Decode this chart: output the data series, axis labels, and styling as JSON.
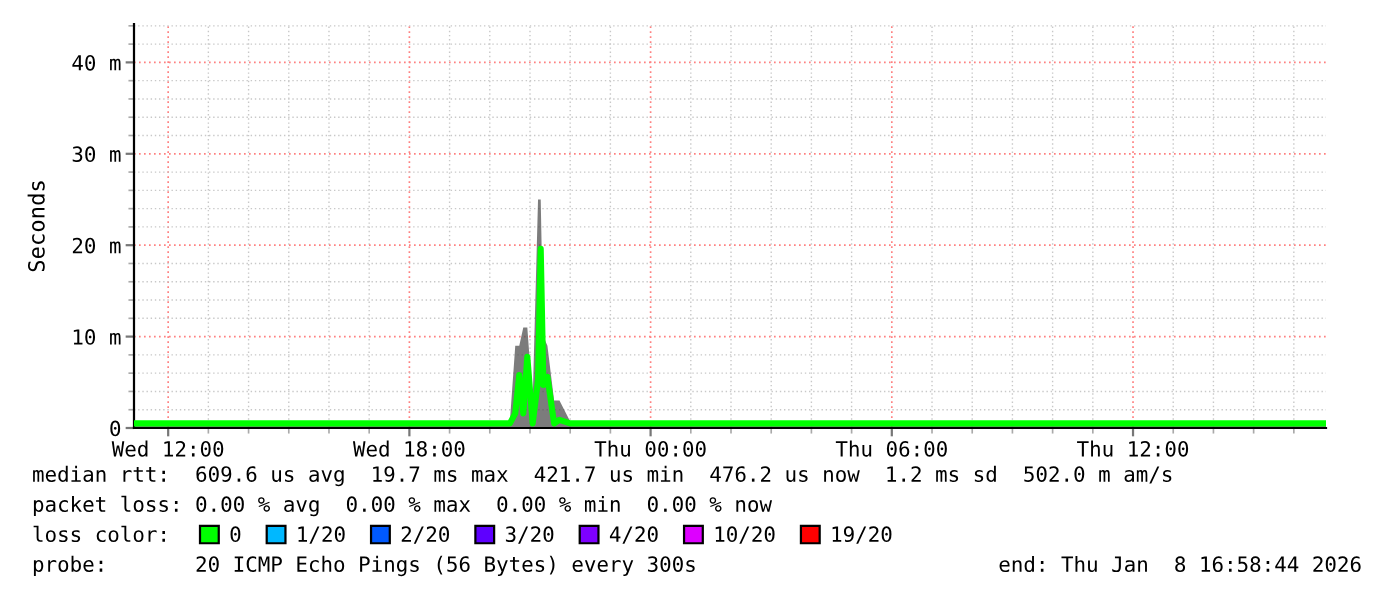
{
  "chart_data": {
    "type": "line",
    "ylabel": "Seconds",
    "x": [
      "2026-01-07T11:09",
      "2026-01-07T14:00",
      "2026-01-07T17:00",
      "2026-01-07T20:00",
      "2026-01-07T20:30",
      "2026-01-07T20:38",
      "2026-01-07T20:44",
      "2026-01-07T20:50",
      "2026-01-07T20:56",
      "2026-01-07T21:04",
      "2026-01-07T21:12",
      "2026-01-07T21:16",
      "2026-01-07T21:20",
      "2026-01-07T21:26",
      "2026-01-07T21:36",
      "2026-01-07T21:44",
      "2026-01-07T22:00",
      "2026-01-08T01:00",
      "2026-01-08T04:00",
      "2026-01-08T07:00",
      "2026-01-08T10:00",
      "2026-01-08T13:00",
      "2026-01-08T16:48"
    ],
    "series": [
      {
        "type": "area",
        "color": "#444444",
        "values": [
          0.7,
          0.7,
          0.7,
          0.7,
          0.7,
          9,
          9,
          11,
          11,
          3,
          25,
          25,
          10,
          9,
          3,
          3,
          0.7,
          0.7,
          0.7,
          0.7,
          0.7,
          0.7,
          0.7
        ]
      },
      {
        "name": "0",
        "color": "#00ff00",
        "values": [
          0.5,
          0.5,
          0.5,
          0.5,
          0.5,
          1.6,
          5.8,
          1.6,
          7.8,
          0.5,
          5.2,
          19.6,
          4.7,
          5.6,
          0.5,
          0.9,
          0.5,
          0.5,
          0.5,
          0.5,
          0.5,
          0.5,
          0.5
        ]
      },
      {
        "name": "1/20",
        "color": "#00b8ff",
        "values": [
          null,
          null,
          null,
          null,
          null,
          null,
          null,
          null,
          null,
          null,
          null,
          null,
          null,
          null,
          null,
          null,
          null,
          null,
          null,
          null,
          null,
          null,
          null
        ]
      },
      {
        "name": "2/20",
        "color": "#0059ff",
        "values": [
          null,
          null,
          null,
          null,
          null,
          null,
          null,
          null,
          null,
          null,
          null,
          null,
          null,
          null,
          null,
          null,
          null,
          null,
          null,
          null,
          null,
          null,
          null
        ]
      },
      {
        "name": "3/20",
        "color": "#5e00ff",
        "values": [
          null,
          null,
          null,
          null,
          null,
          null,
          null,
          null,
          null,
          null,
          null,
          null,
          null,
          null,
          null,
          null,
          null,
          null,
          null,
          null,
          null,
          null,
          null
        ]
      },
      {
        "name": "4/20",
        "color": "#7e00ff",
        "values": [
          null,
          null,
          null,
          null,
          null,
          null,
          null,
          null,
          null,
          null,
          null,
          null,
          null,
          null,
          null,
          null,
          null,
          null,
          null,
          null,
          null,
          null,
          null
        ]
      },
      {
        "name": "10/20",
        "color": "#dd00ff",
        "values": [
          null,
          null,
          null,
          null,
          null,
          null,
          null,
          null,
          null,
          null,
          null,
          null,
          null,
          null,
          null,
          null,
          null,
          null,
          null,
          null,
          null,
          null,
          null
        ]
      },
      {
        "name": "19/20",
        "color": "#ff0000",
        "values": [
          null,
          null,
          null,
          null,
          null,
          null,
          null,
          null,
          null,
          null,
          null,
          null,
          null,
          null,
          null,
          null,
          null,
          null,
          null,
          null,
          null,
          null,
          null
        ]
      }
    ],
    "legend_title": "loss color:",
    "legend": "bottom",
    "xlim": [
      "2026-01-07T11:09",
      "2026-01-08T16:48"
    ],
    "xticks": [
      {
        "value": "2026-01-07T12:00",
        "label": "Wed 12:00"
      },
      {
        "value": "2026-01-07T18:00",
        "label": "Wed 18:00"
      },
      {
        "value": "2026-01-08T00:00",
        "label": "Thu 00:00"
      },
      {
        "value": "2026-01-08T06:00",
        "label": "Thu 06:00"
      },
      {
        "value": "2026-01-08T12:00",
        "label": "Thu 12:00"
      }
    ],
    "ylim": [
      0,
      44.2
    ],
    "yticks": [
      0,
      {
        "value": 10,
        "label": "10 m"
      },
      {
        "value": 20,
        "label": "20 m"
      },
      {
        "value": 30,
        "label": "30 m"
      },
      {
        "value": 40,
        "label": "40 m"
      }
    ],
    "grid": true,
    "annotations": [
      "median rtt:  609.6 us avg  19.7 ms max  421.7 us min  476.2 us now  1.2 ms sd  502.0 m am/s",
      "packet loss: 0.00 % avg  0.00 % max  0.00 % min  0.00 % now",
      "probe:       20 ICMP Echo Pings (56 Bytes) every 300s",
      "end: Thu Jan  8 16:58:44 2026"
    ]
  }
}
